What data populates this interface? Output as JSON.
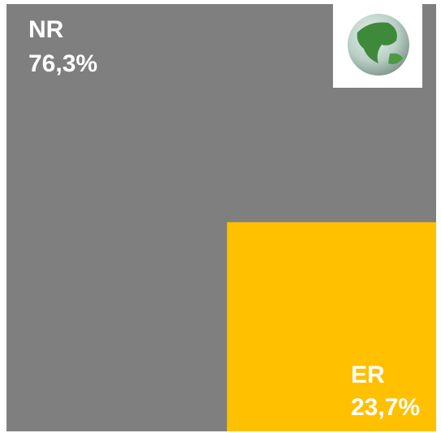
{
  "chart_data": {
    "type": "squares",
    "categories": [
      "NR",
      "ER"
    ],
    "values": [
      76.3,
      23.7
    ],
    "value_labels": [
      "76,3%",
      "23,7%"
    ],
    "colors": [
      "#7f7f7f",
      "#ffc000"
    ]
  }
}
